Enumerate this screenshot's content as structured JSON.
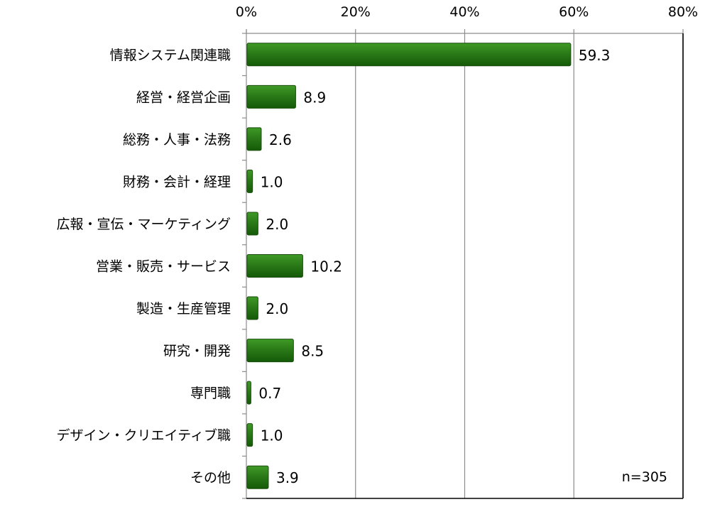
{
  "chart_data": {
    "type": "bar",
    "orientation": "horizontal",
    "categories": [
      "情報システム関連職",
      "経営・経営企画",
      "総務・人事・法務",
      "財務・会計・経理",
      "広報・宣伝・マーケティング",
      "営業・販売・サービス",
      "製造・生産管理",
      "研究・開発",
      "専門職",
      "デザイン・クリエイティブ職",
      "その他"
    ],
    "values": [
      59.3,
      8.9,
      2.6,
      1.0,
      2.0,
      10.2,
      2.0,
      8.5,
      0.7,
      1.0,
      3.9
    ],
    "value_labels": [
      "59.3",
      "8.9",
      "2.6",
      "1.0",
      "2.0",
      "10.2",
      "2.0",
      "8.5",
      "0.7",
      "1.0",
      "3.9"
    ],
    "x_ticks": [
      0,
      20,
      40,
      60,
      80
    ],
    "x_tick_labels": [
      "0%",
      "20%",
      "40%",
      "60%",
      "80%"
    ],
    "xlim": [
      0,
      80
    ],
    "xlabel": "",
    "ylabel": "",
    "title": "",
    "grid": true,
    "axis_position": "top",
    "annotation": "n=305",
    "bar_color": "#2e7d1a",
    "bar_edge_color": "#1a4d0d"
  }
}
